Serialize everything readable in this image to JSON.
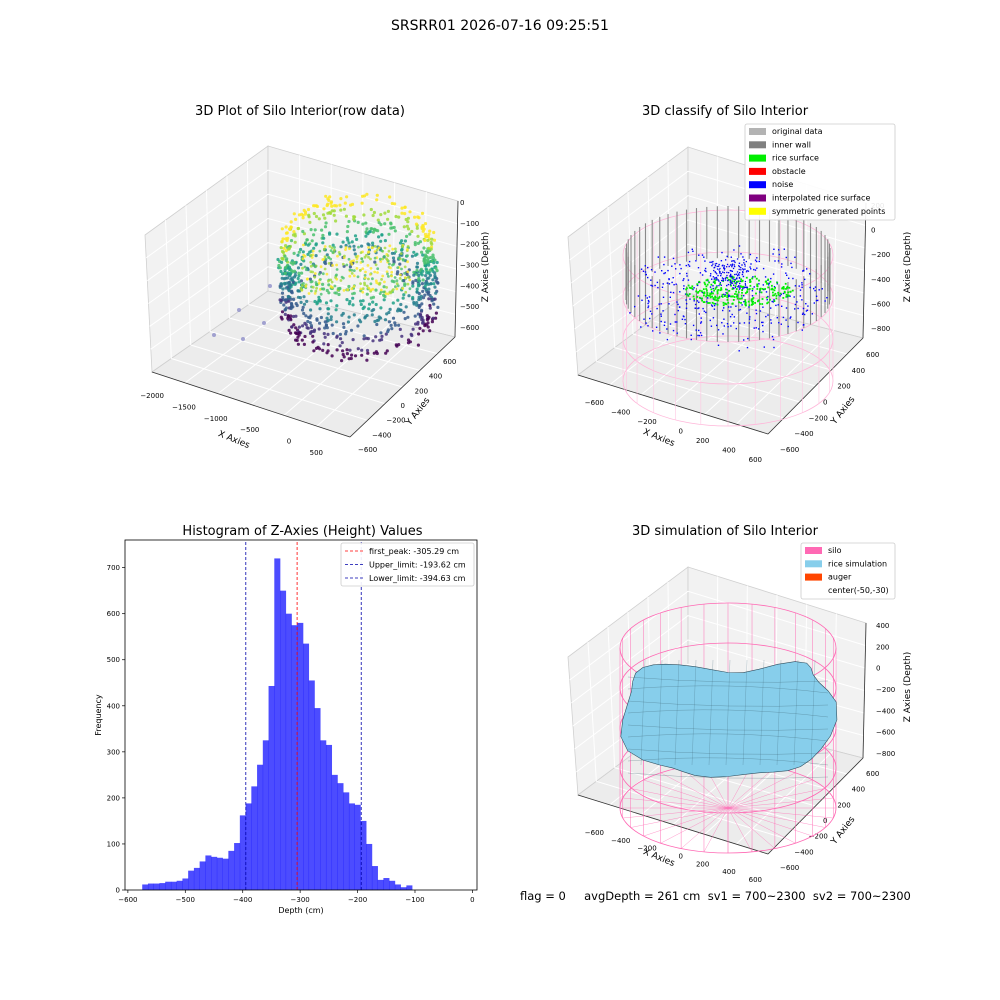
{
  "figure_title": "SRSRR01 2026-07-16 09:25:51",
  "footer": "flag = 0     avgDepth = 261 cm  sv1 = 700~2300  sv2 = 700~2300",
  "chart_data": [
    {
      "type": "scatter3d",
      "title": "3D Plot of Silo Interior(row data)",
      "xlabel": "X Axies",
      "ylabel": "Y Axies",
      "zlabel": "Z Axies (Depth)",
      "x_ticks": [
        "−2000",
        "−1500",
        "−1000",
        "−500",
        "0",
        "500"
      ],
      "y_ticks": [
        "−600",
        "−400",
        "−200",
        "0",
        "200",
        "400",
        "600"
      ],
      "z_ticks": [
        "−600",
        "−500",
        "−400",
        "−300",
        "−200",
        "−100",
        "0"
      ],
      "xlim": [
        -2100,
        600
      ],
      "ylim": [
        -650,
        650
      ],
      "zlim": [
        -650,
        20
      ],
      "colormap": "viridis"
    },
    {
      "type": "scatter3d",
      "title": "3D classify of Silo Interior",
      "xlabel": "X Axies",
      "ylabel": "Y Axies",
      "zlabel": "Z Axies (Depth)",
      "x_ticks": [
        "−600",
        "−400",
        "−200",
        "0",
        "200",
        "400",
        "600"
      ],
      "y_ticks": [
        "−600",
        "−400",
        "−200",
        "0",
        "200",
        "400",
        "600"
      ],
      "z_ticks": [
        "−800",
        "−600",
        "−400",
        "−200",
        "0",
        "200"
      ],
      "xlim": [
        -700,
        650
      ],
      "ylim": [
        -650,
        650
      ],
      "zlim": [
        -900,
        300
      ],
      "legend_position": "top-right",
      "legend": [
        {
          "label": "original data",
          "color": "#b3b3b3"
        },
        {
          "label": "inner wall",
          "color": "#808080"
        },
        {
          "label": "rice surface",
          "color": "#00ee00"
        },
        {
          "label": "obstacle",
          "color": "#ff0000"
        },
        {
          "label": "noise",
          "color": "#0000ff"
        },
        {
          "label": "interpolated rice surface",
          "color": "#800080"
        },
        {
          "label": "symmetric generated points",
          "color": "#ffff00"
        }
      ]
    },
    {
      "type": "bar",
      "title": "Histogram of Z-Axies (Height) Values",
      "xlabel": "Depth (cm)",
      "ylabel": "Frequency",
      "xlim": [
        -605,
        8
      ],
      "ylim": [
        0,
        760
      ],
      "x_ticks": [
        -600,
        -500,
        -400,
        -300,
        -200,
        -100,
        0
      ],
      "y_ticks": [
        0,
        100,
        200,
        300,
        400,
        500,
        600,
        700
      ],
      "bin_start": -575,
      "bin_width": 10,
      "values": [
        12,
        14,
        14,
        15,
        18,
        18,
        20,
        25,
        42,
        48,
        62,
        75,
        72,
        70,
        68,
        85,
        102,
        162,
        188,
        225,
        272,
        325,
        443,
        720,
        650,
        600,
        575,
        580,
        535,
        455,
        395,
        325,
        315,
        250,
        232,
        212,
        188,
        185,
        150,
        100,
        52,
        22,
        26,
        20,
        12,
        6,
        10
      ],
      "color": "#0000ff",
      "legend_position": "top-right",
      "vlines": [
        {
          "x": -305.29,
          "label": "first_peak: -305.29 cm",
          "color": "#ff0000"
        },
        {
          "x": -193.62,
          "label": "Upper_limit: -193.62 cm",
          "color": "#0000aa"
        },
        {
          "x": -394.63,
          "label": "Lower_limit: -394.63 cm",
          "color": "#0000aa"
        }
      ]
    },
    {
      "type": "surface3d",
      "title": "3D simulation of Silo Interior",
      "xlabel": "X Axies",
      "ylabel": "Y Axies",
      "zlabel": "Z Axies (Depth)",
      "x_ticks": [
        "−600",
        "−400",
        "−200",
        "0",
        "200",
        "400",
        "600"
      ],
      "y_ticks": [
        "−600",
        "−400",
        "−200",
        "0",
        "200",
        "400",
        "600"
      ],
      "z_ticks": [
        "−800",
        "−600",
        "−400",
        "−200",
        "0",
        "200",
        "400"
      ],
      "xlim": [
        -700,
        650
      ],
      "ylim": [
        -650,
        650
      ],
      "zlim": [
        -900,
        450
      ],
      "legend_position": "top-right",
      "legend": [
        {
          "label": "silo",
          "color": "#ff69b4"
        },
        {
          "label": "rice simulation",
          "color": "#87ceeb"
        },
        {
          "label": "auger",
          "color": "#ff4500"
        },
        {
          "label": "center(-50,-30)",
          "color": ""
        }
      ]
    }
  ]
}
